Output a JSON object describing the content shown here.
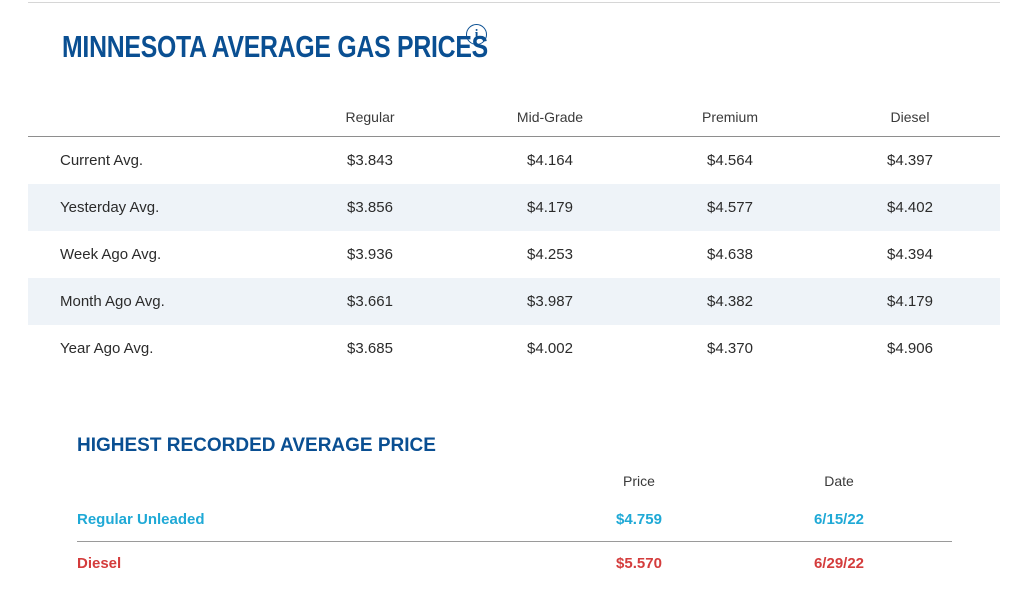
{
  "title": "MINNESOTA AVERAGE GAS PRICES",
  "info_icon": {
    "name": "info-icon",
    "glyph": "i"
  },
  "prices": {
    "headers": [
      "Regular",
      "Mid-Grade",
      "Premium",
      "Diesel"
    ],
    "rows": [
      {
        "label": "Current Avg.",
        "values": [
          "$3.843",
          "$4.164",
          "$4.564",
          "$4.397"
        ]
      },
      {
        "label": "Yesterday Avg.",
        "values": [
          "$3.856",
          "$4.179",
          "$4.577",
          "$4.402"
        ]
      },
      {
        "label": "Week Ago Avg.",
        "values": [
          "$3.936",
          "$4.253",
          "$4.638",
          "$4.394"
        ]
      },
      {
        "label": "Month Ago Avg.",
        "values": [
          "$3.661",
          "$3.987",
          "$4.382",
          "$4.179"
        ]
      },
      {
        "label": "Year Ago Avg.",
        "values": [
          "$3.685",
          "$4.002",
          "$4.370",
          "$4.906"
        ]
      }
    ]
  },
  "highest": {
    "title": "HIGHEST RECORDED AVERAGE PRICE",
    "headers": {
      "price": "Price",
      "date": "Date"
    },
    "rows": [
      {
        "label": "Regular Unleaded",
        "price": "$4.759",
        "date": "6/15/22",
        "color": "#1fa9d6"
      },
      {
        "label": "Diesel",
        "price": "$5.570",
        "date": "6/29/22",
        "color": "#d43c3c"
      }
    ]
  },
  "colors": {
    "heading": "#0a4f92",
    "row_shade": "#eef3f8",
    "regular_unleaded": "#1fa9d6",
    "diesel": "#d43c3c"
  }
}
